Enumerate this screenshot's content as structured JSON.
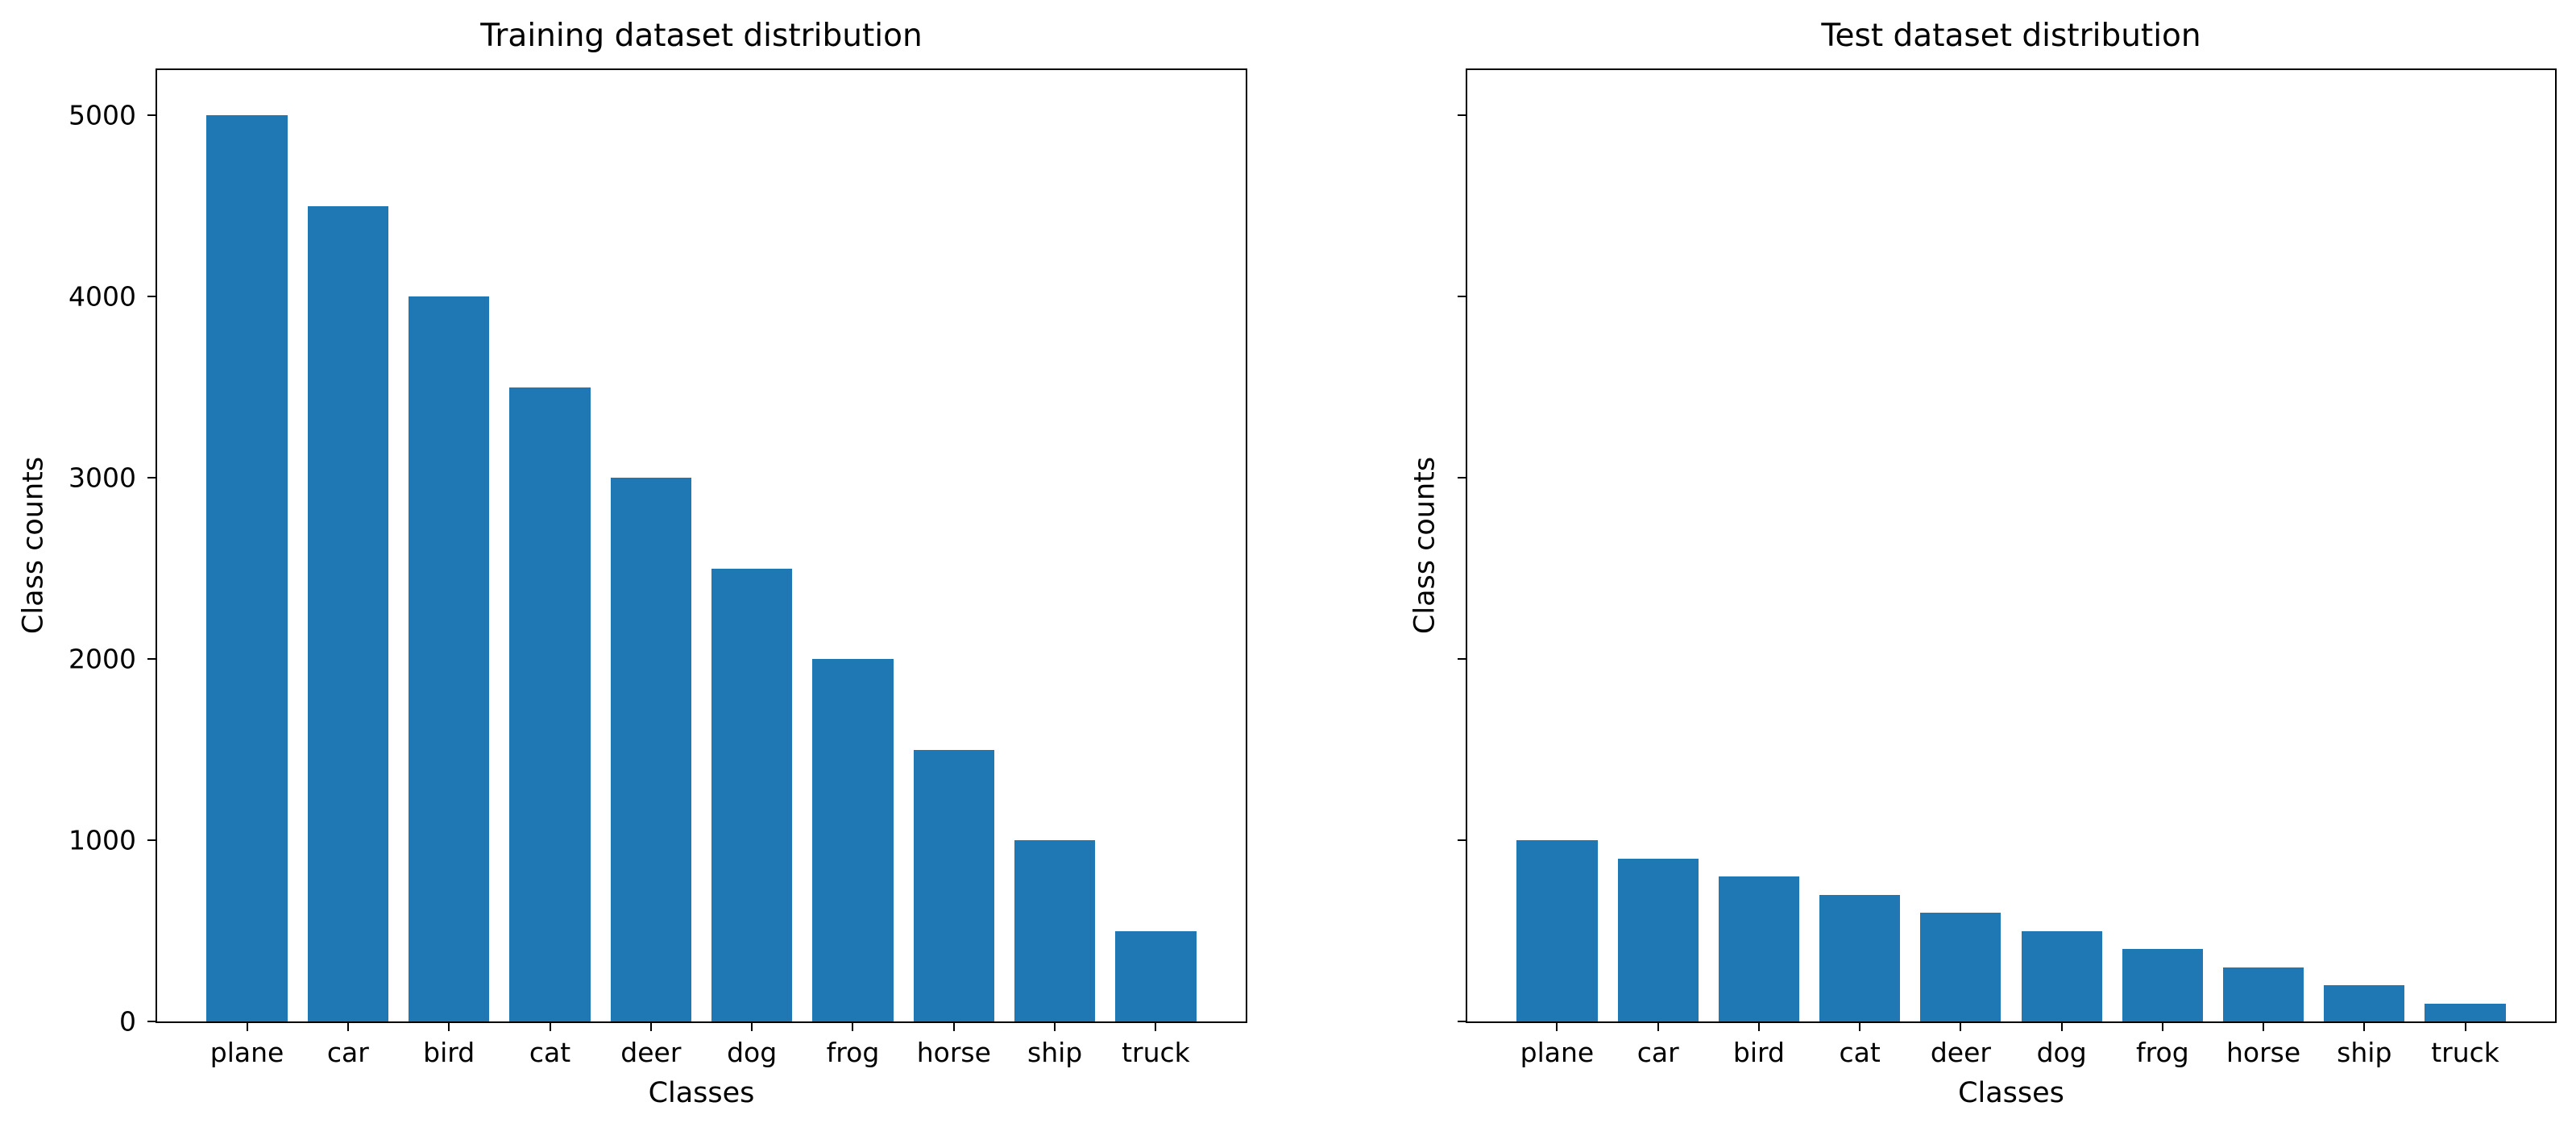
{
  "figure": {
    "background_color": "#ffffff",
    "text_color": "#000000",
    "spine_color": "#000000",
    "bar_color": "#1f77b4"
  },
  "chart_data": [
    {
      "type": "bar",
      "title": "Training dataset distribution",
      "xlabel": "Classes",
      "ylabel": "Class counts",
      "categories": [
        "plane",
        "car",
        "bird",
        "cat",
        "deer",
        "dog",
        "frog",
        "horse",
        "ship",
        "truck"
      ],
      "values": [
        5000,
        4500,
        4000,
        3500,
        3000,
        2500,
        2000,
        1500,
        1000,
        500
      ],
      "ylim": [
        0,
        5250
      ],
      "yticks": [
        0,
        1000,
        2000,
        3000,
        4000,
        5000
      ],
      "ytick_labels": [
        "0",
        "1000",
        "2000",
        "3000",
        "4000",
        "5000"
      ],
      "ytick_labels_visible": true,
      "grid": false,
      "legend": null,
      "bar_color": "#1f77b4",
      "bar_width_fraction": 0.8
    },
    {
      "type": "bar",
      "title": "Test dataset distribution",
      "xlabel": "Classes",
      "ylabel": "Class counts",
      "categories": [
        "plane",
        "car",
        "bird",
        "cat",
        "deer",
        "dog",
        "frog",
        "horse",
        "ship",
        "truck"
      ],
      "values": [
        1000,
        900,
        800,
        700,
        600,
        500,
        400,
        300,
        200,
        100
      ],
      "ylim": [
        0,
        5250
      ],
      "yticks": [
        0,
        1000,
        2000,
        3000,
        4000,
        5000
      ],
      "ytick_labels": [
        "",
        "",
        "",
        "",
        "",
        ""
      ],
      "ytick_labels_visible": false,
      "grid": false,
      "legend": null,
      "bar_color": "#1f77b4",
      "bar_width_fraction": 0.8
    }
  ]
}
